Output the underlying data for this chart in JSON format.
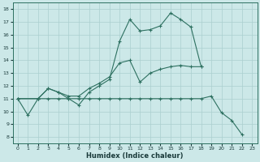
{
  "xlabel": "Humidex (Indice chaleur)",
  "bg_color": "#cce8e8",
  "line_color": "#2d7060",
  "xlim": [
    -0.5,
    23.5
  ],
  "ylim": [
    7.5,
    18.5
  ],
  "xticks": [
    0,
    1,
    2,
    3,
    4,
    5,
    6,
    7,
    8,
    9,
    10,
    11,
    12,
    13,
    14,
    15,
    16,
    17,
    18,
    19,
    20,
    21,
    22,
    23
  ],
  "yticks": [
    8,
    9,
    10,
    11,
    12,
    13,
    14,
    15,
    16,
    17,
    18
  ],
  "grid_color": "#aacfcf",
  "line1_x": [
    0,
    1,
    2,
    3,
    4,
    5,
    6,
    7,
    8,
    9,
    10,
    11,
    12,
    13,
    14,
    15,
    16,
    17,
    18,
    19,
    20,
    21,
    22
  ],
  "line1_y": [
    11,
    9.7,
    11,
    11.8,
    11.5,
    11,
    10.5,
    11.5,
    12.0,
    12.5,
    15.5,
    17.2,
    16.3,
    16.4,
    16.7,
    17.7,
    17.2,
    16.6,
    13.5,
    null,
    null,
    null,
    null
  ],
  "line2_x": [
    0,
    2,
    3,
    4,
    5,
    6,
    7,
    8,
    9,
    10,
    11,
    12,
    13,
    14,
    15,
    16,
    17,
    18
  ],
  "line2_y": [
    11,
    11,
    11.8,
    11.5,
    11.2,
    11.2,
    11.8,
    12.2,
    12.7,
    13.8,
    14.0,
    12.3,
    13.0,
    13.3,
    13.5,
    13.6,
    13.5,
    13.5
  ],
  "line3_x": [
    0,
    2,
    3,
    4,
    5,
    6,
    7,
    8,
    9,
    10,
    11,
    12,
    13,
    14,
    15,
    16,
    17,
    18,
    19,
    20,
    21,
    22
  ],
  "line3_y": [
    11,
    11,
    11,
    11,
    11,
    11,
    11,
    11,
    11,
    11,
    11,
    11,
    11,
    11,
    11,
    11,
    11,
    11,
    11.2,
    9.9,
    9.3,
    8.2
  ]
}
